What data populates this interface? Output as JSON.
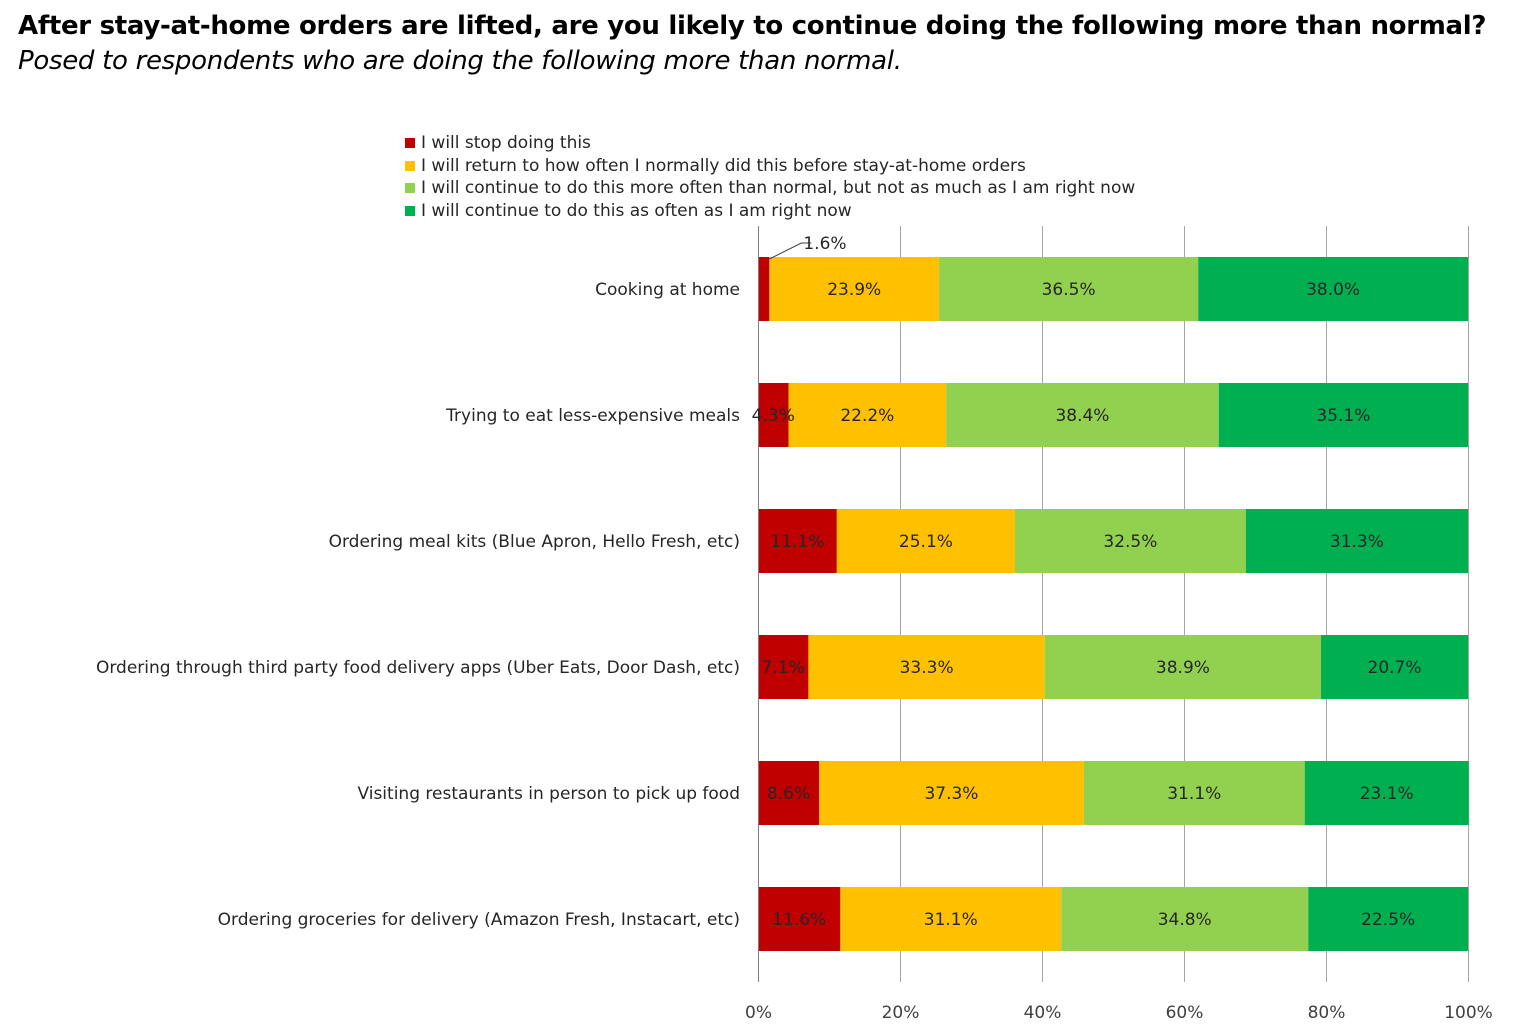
{
  "title": "After stay-at-home orders are lifted, are you likely to continue doing the following more than normal?",
  "subtitle": "Posed to respondents who are doing the following more than normal.",
  "chart_data": {
    "type": "bar",
    "orientation": "horizontal",
    "stacked": true,
    "categories": [
      "Cooking at home",
      "Trying to eat less-expensive meals",
      "Ordering meal kits (Blue Apron, Hello Fresh, etc)",
      "Ordering through third party food delivery apps (Uber Eats, Door Dash, etc)",
      "Visiting restaurants in person to pick up food",
      "Ordering groceries for delivery (Amazon Fresh, Instacart, etc)"
    ],
    "series": [
      {
        "name": "I will stop doing this",
        "color": "#c00000",
        "values": [
          1.6,
          4.3,
          11.1,
          7.1,
          8.6,
          11.6
        ],
        "labels": [
          "1.6%",
          "4.3%",
          "11.1%",
          "7.1%",
          "8.6%",
          "11.6%"
        ]
      },
      {
        "name": "I will return to how often I normally did this before stay-at-home orders",
        "color": "#ffc000",
        "values": [
          23.9,
          22.2,
          25.1,
          33.3,
          37.3,
          31.1
        ],
        "labels": [
          "23.9%",
          "22.2%",
          "25.1%",
          "33.3%",
          "37.3%",
          "31.1%"
        ]
      },
      {
        "name": "I will continue to do this more often than normal, but not as much as I am right now",
        "color": "#92d050",
        "values": [
          36.5,
          38.4,
          32.5,
          38.9,
          31.1,
          34.8
        ],
        "labels": [
          "36.5%",
          "38.4%",
          "32.5%",
          "38.9%",
          "31.1%",
          "34.8%"
        ]
      },
      {
        "name": "I will continue to do this as often as I am right now",
        "color": "#00b050",
        "values": [
          38.0,
          35.1,
          31.3,
          20.7,
          23.1,
          22.5
        ],
        "labels": [
          "38.0%",
          "35.1%",
          "31.3%",
          "20.7%",
          "23.1%",
          "22.5%"
        ]
      }
    ],
    "xlim": [
      0,
      100
    ],
    "xticks": [
      "0%",
      "20%",
      "40%",
      "60%",
      "80%",
      "100%"
    ],
    "grid": true,
    "legend_position": "top"
  }
}
